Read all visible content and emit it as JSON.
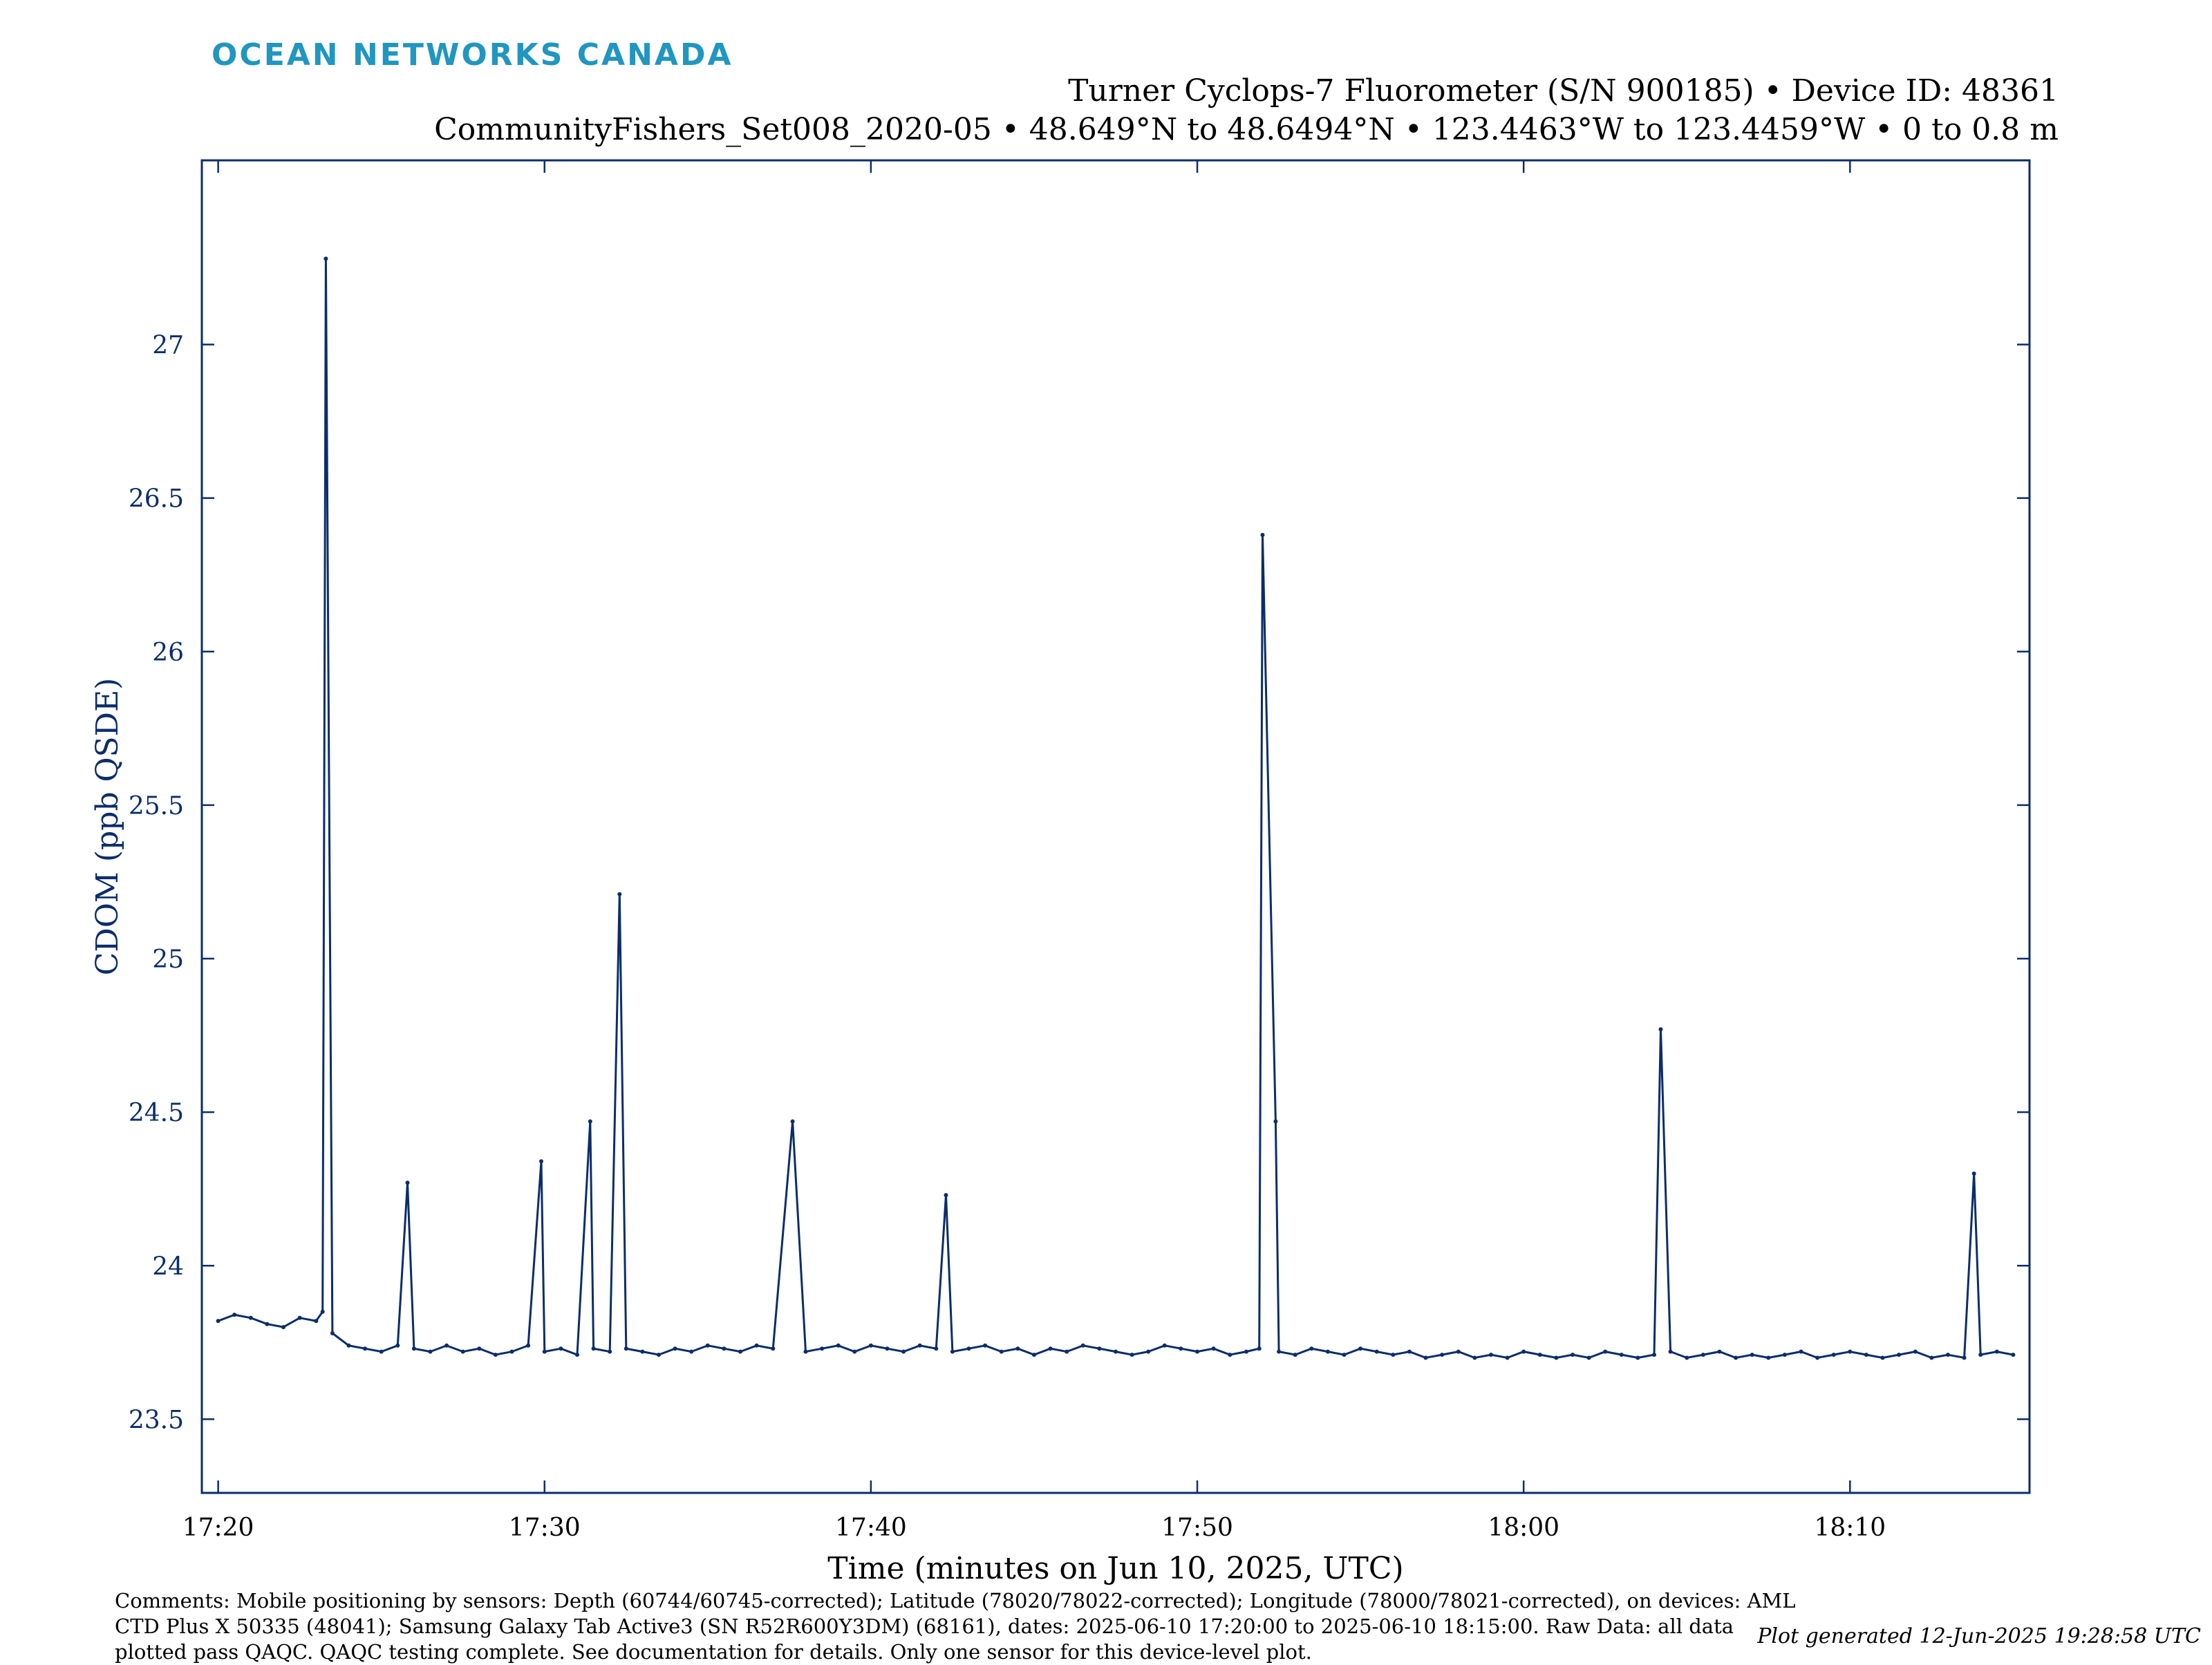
{
  "header": {
    "logo_text": "OCEAN NETWORKS CANADA",
    "title_line1": "Turner Cyclops-7 Fluorometer (S/N 900185) • Device ID: 48361",
    "title_line2": "CommunityFishers_Set008_2020-05 • 48.649°N to 48.6494°N • 123.4463°W to 123.4459°W • 0 to 0.8 m"
  },
  "footer": {
    "comments": "Comments: Mobile positioning by sensors: Depth (60744/60745-corrected); Latitude (78020/78022-corrected); Longitude (78000/78021-corrected), on devices: AML CTD Plus X 50335 (48041); Samsung Galaxy Tab Active3 (SN R52R600Y3DM) (68161), dates: 2025-06-10 17:20:00 to 2025-06-10 18:15:00. Raw Data: all data plotted pass QAQC. QAQC testing complete. See documentation for details. Only one sensor for this device-level plot.",
    "generated": "Plot generated 12-Jun-2025 19:28:58 UTC"
  },
  "colors": {
    "series": "#0b2d6b",
    "axis": "#0b2d6b",
    "logo": "#2096c0"
  },
  "chart_data": {
    "type": "line",
    "xlabel": "Time (minutes on Jun 10, 2025, UTC)",
    "ylabel": "CDOM (ppb QSDE)",
    "x_unit": "minutes after 17:00 UTC",
    "xlim": [
      19.5,
      75.5
    ],
    "ylim": [
      23.26,
      27.6
    ],
    "x_ticks": [
      20,
      30,
      40,
      50,
      60,
      70
    ],
    "x_tick_labels": [
      "17:20",
      "17:30",
      "17:40",
      "17:50",
      "18:00",
      "18:10"
    ],
    "y_ticks": [
      23.5,
      24,
      24.5,
      25,
      25.5,
      26,
      26.5,
      27
    ],
    "y_tick_labels": [
      "23.5",
      "24",
      "24.5",
      "25",
      "25.5",
      "26",
      "26.5",
      "27"
    ],
    "grid": false,
    "series": [
      {
        "x": [
          20.0,
          20.5,
          21.0,
          21.5,
          22.0,
          22.5,
          23.0,
          23.2,
          23.3,
          23.5,
          24.0,
          24.5,
          25.0,
          25.5,
          25.8,
          26.0,
          26.5,
          27.0,
          27.5,
          28.0,
          28.5,
          29.0,
          29.5,
          29.9,
          30.0,
          30.5,
          31.0,
          31.4,
          31.5,
          32.0,
          32.3,
          32.5,
          33.0,
          33.5,
          34.0,
          34.5,
          35.0,
          35.5,
          36.0,
          36.5,
          37.0,
          37.6,
          38.0,
          38.5,
          39.0,
          39.5,
          40.0,
          40.5,
          41.0,
          41.5,
          42.0,
          42.3,
          42.5,
          43.0,
          43.5,
          44.0,
          44.5,
          45.0,
          45.5,
          46.0,
          46.5,
          47.0,
          47.5,
          48.0,
          48.5,
          49.0,
          49.5,
          50.0,
          50.5,
          51.0,
          51.5,
          51.9,
          52.0,
          52.4,
          52.5,
          53.0,
          53.5,
          54.0,
          54.5,
          55.0,
          55.5,
          56.0,
          56.5,
          57.0,
          57.5,
          58.0,
          58.5,
          59.0,
          59.5,
          60.0,
          60.5,
          61.0,
          61.5,
          62.0,
          62.5,
          63.0,
          63.5,
          64.0,
          64.2,
          64.5,
          65.0,
          65.5,
          66.0,
          66.5,
          67.0,
          67.5,
          68.0,
          68.5,
          69.0,
          69.5,
          70.0,
          70.5,
          71.0,
          71.5,
          72.0,
          72.5,
          73.0,
          73.5,
          73.8,
          74.0,
          74.5,
          75.0
        ],
        "y": [
          23.82,
          23.84,
          23.83,
          23.81,
          23.8,
          23.83,
          23.82,
          23.85,
          27.28,
          23.78,
          23.74,
          23.73,
          23.72,
          23.74,
          24.27,
          23.73,
          23.72,
          23.74,
          23.72,
          23.73,
          23.71,
          23.72,
          23.74,
          24.34,
          23.72,
          23.73,
          23.71,
          24.47,
          23.73,
          23.72,
          25.21,
          23.73,
          23.72,
          23.71,
          23.73,
          23.72,
          23.74,
          23.73,
          23.72,
          23.74,
          23.73,
          24.47,
          23.72,
          23.73,
          23.74,
          23.72,
          23.74,
          23.73,
          23.72,
          23.74,
          23.73,
          24.23,
          23.72,
          23.73,
          23.74,
          23.72,
          23.73,
          23.71,
          23.73,
          23.72,
          23.74,
          23.73,
          23.72,
          23.71,
          23.72,
          23.74,
          23.73,
          23.72,
          23.73,
          23.71,
          23.72,
          23.73,
          26.38,
          24.47,
          23.72,
          23.71,
          23.73,
          23.72,
          23.71,
          23.73,
          23.72,
          23.71,
          23.72,
          23.7,
          23.71,
          23.72,
          23.7,
          23.71,
          23.7,
          23.72,
          23.71,
          23.7,
          23.71,
          23.7,
          23.72,
          23.71,
          23.7,
          23.71,
          24.77,
          23.72,
          23.7,
          23.71,
          23.72,
          23.7,
          23.71,
          23.7,
          23.71,
          23.72,
          23.7,
          23.71,
          23.72,
          23.71,
          23.7,
          23.71,
          23.72,
          23.7,
          23.71,
          23.7,
          24.3,
          23.71,
          23.72,
          23.71
        ]
      }
    ]
  }
}
